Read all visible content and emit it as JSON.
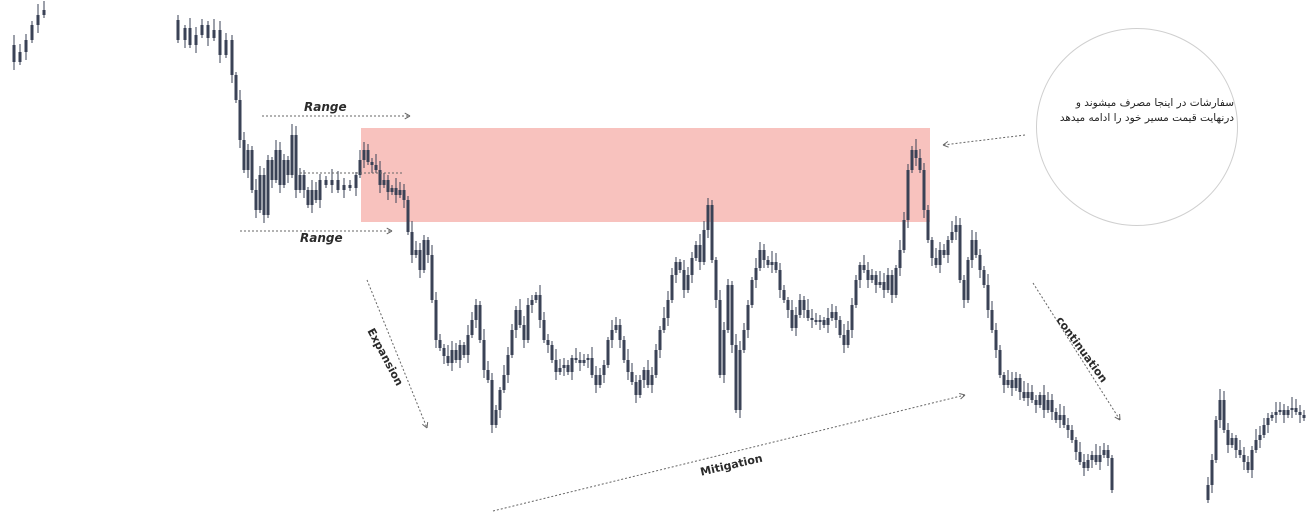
{
  "annotations": {
    "range_top": "Range",
    "range_bottom": "Range",
    "expansion": "Expansion",
    "mitigation": "Mitigation",
    "continuation": "continuation",
    "note": "سفارشات در اینجا مصرف میشوند و درنهایت قیمت مسیر خود را ادامه میدهد"
  },
  "colors": {
    "candle": "#3a4256",
    "zone_fill": "#f7b7b3",
    "arrow": "#666666",
    "circle_border": "#cfcfcf"
  },
  "chart_data": {
    "type": "candlestick",
    "title": "",
    "xlabel": "",
    "ylabel": "",
    "grid": false,
    "ylim": [
      0,
      513
    ],
    "zone": {
      "label": "",
      "y_top": 128,
      "y_bottom": 222,
      "x_start": 361,
      "x_end": 930
    },
    "path": [
      [
        8,
        45
      ],
      [
        14,
        62
      ],
      [
        20,
        52
      ],
      [
        26,
        40
      ],
      [
        32,
        25
      ],
      [
        38,
        15
      ],
      [
        44,
        10
      ],
      [
        172,
        20
      ],
      [
        178,
        40
      ],
      [
        185,
        28
      ],
      [
        190,
        45
      ],
      [
        196,
        35
      ],
      [
        202,
        25
      ],
      [
        208,
        38
      ],
      [
        214,
        30
      ],
      [
        220,
        55
      ],
      [
        226,
        40
      ],
      [
        232,
        75
      ],
      [
        236,
        100
      ],
      [
        240,
        140
      ],
      [
        244,
        170
      ],
      [
        248,
        150
      ],
      [
        252,
        190
      ],
      [
        256,
        210
      ],
      [
        260,
        175
      ],
      [
        264,
        215
      ],
      [
        268,
        160
      ],
      [
        272,
        180
      ],
      [
        276,
        150
      ],
      [
        280,
        185
      ],
      [
        284,
        160
      ],
      [
        288,
        175
      ],
      [
        292,
        135
      ],
      [
        296,
        190
      ],
      [
        300,
        175
      ],
      [
        304,
        190
      ],
      [
        308,
        205
      ],
      [
        312,
        190
      ],
      [
        316,
        200
      ],
      [
        320,
        180
      ],
      [
        326,
        185
      ],
      [
        332,
        180
      ],
      [
        338,
        190
      ],
      [
        344,
        185
      ],
      [
        350,
        188
      ],
      [
        356,
        175
      ],
      [
        360,
        160
      ],
      [
        364,
        150
      ],
      [
        368,
        162
      ],
      [
        372,
        165
      ],
      [
        376,
        170
      ],
      [
        380,
        185
      ],
      [
        384,
        180
      ],
      [
        388,
        192
      ],
      [
        392,
        188
      ],
      [
        396,
        195
      ],
      [
        400,
        190
      ],
      [
        404,
        200
      ],
      [
        408,
        232
      ],
      [
        412,
        255
      ],
      [
        416,
        250
      ],
      [
        420,
        270
      ],
      [
        424,
        240
      ],
      [
        428,
        255
      ],
      [
        432,
        300
      ],
      [
        436,
        340
      ],
      [
        440,
        348
      ],
      [
        444,
        356
      ],
      [
        448,
        363
      ],
      [
        452,
        350
      ],
      [
        456,
        360
      ],
      [
        460,
        345
      ],
      [
        464,
        355
      ],
      [
        468,
        335
      ],
      [
        472,
        320
      ],
      [
        476,
        305
      ],
      [
        480,
        340
      ],
      [
        484,
        370
      ],
      [
        488,
        380
      ],
      [
        492,
        425
      ],
      [
        496,
        410
      ],
      [
        500,
        390
      ],
      [
        504,
        375
      ],
      [
        508,
        355
      ],
      [
        512,
        330
      ],
      [
        516,
        310
      ],
      [
        520,
        325
      ],
      [
        524,
        340
      ],
      [
        528,
        305
      ],
      [
        532,
        300
      ],
      [
        536,
        295
      ],
      [
        540,
        320
      ],
      [
        544,
        340
      ],
      [
        548,
        345
      ],
      [
        552,
        360
      ],
      [
        556,
        372
      ],
      [
        560,
        368
      ],
      [
        564,
        365
      ],
      [
        568,
        372
      ],
      [
        572,
        358
      ],
      [
        576,
        360
      ],
      [
        580,
        363
      ],
      [
        584,
        360
      ],
      [
        588,
        358
      ],
      [
        592,
        375
      ],
      [
        596,
        385
      ],
      [
        600,
        375
      ],
      [
        604,
        365
      ],
      [
        608,
        340
      ],
      [
        612,
        330
      ],
      [
        616,
        325
      ],
      [
        620,
        340
      ],
      [
        624,
        360
      ],
      [
        628,
        372
      ],
      [
        632,
        382
      ],
      [
        636,
        395
      ],
      [
        640,
        380
      ],
      [
        644,
        370
      ],
      [
        648,
        385
      ],
      [
        652,
        375
      ],
      [
        656,
        350
      ],
      [
        660,
        330
      ],
      [
        664,
        318
      ],
      [
        668,
        300
      ],
      [
        672,
        275
      ],
      [
        676,
        262
      ],
      [
        680,
        270
      ],
      [
        684,
        290
      ],
      [
        688,
        275
      ],
      [
        692,
        258
      ],
      [
        696,
        245
      ],
      [
        700,
        262
      ],
      [
        704,
        230
      ],
      [
        708,
        205
      ],
      [
        712,
        260
      ],
      [
        716,
        300
      ],
      [
        720,
        375
      ],
      [
        724,
        330
      ],
      [
        728,
        285
      ],
      [
        732,
        345
      ],
      [
        736,
        410
      ],
      [
        740,
        350
      ],
      [
        744,
        330
      ],
      [
        748,
        305
      ],
      [
        752,
        280
      ],
      [
        756,
        268
      ],
      [
        760,
        250
      ],
      [
        764,
        260
      ],
      [
        768,
        265
      ],
      [
        772,
        262
      ],
      [
        776,
        270
      ],
      [
        780,
        290
      ],
      [
        784,
        300
      ],
      [
        788,
        310
      ],
      [
        792,
        328
      ],
      [
        796,
        315
      ],
      [
        800,
        300
      ],
      [
        804,
        310
      ],
      [
        808,
        318
      ],
      [
        812,
        320
      ],
      [
        816,
        322
      ],
      [
        820,
        320
      ],
      [
        824,
        325
      ],
      [
        828,
        318
      ],
      [
        832,
        312
      ],
      [
        836,
        320
      ],
      [
        840,
        335
      ],
      [
        844,
        345
      ],
      [
        848,
        330
      ],
      [
        852,
        305
      ],
      [
        856,
        280
      ],
      [
        860,
        265
      ],
      [
        864,
        270
      ],
      [
        868,
        280
      ],
      [
        872,
        275
      ],
      [
        876,
        285
      ],
      [
        880,
        282
      ],
      [
        884,
        290
      ],
      [
        888,
        275
      ],
      [
        892,
        295
      ],
      [
        896,
        268
      ],
      [
        900,
        250
      ],
      [
        904,
        220
      ],
      [
        908,
        170
      ],
      [
        912,
        150
      ],
      [
        916,
        158
      ],
      [
        920,
        170
      ],
      [
        924,
        210
      ],
      [
        928,
        240
      ],
      [
        932,
        258
      ],
      [
        936,
        265
      ],
      [
        940,
        250
      ],
      [
        944,
        255
      ],
      [
        948,
        240
      ],
      [
        952,
        232
      ],
      [
        956,
        225
      ],
      [
        960,
        280
      ],
      [
        964,
        300
      ],
      [
        968,
        260
      ],
      [
        972,
        240
      ],
      [
        976,
        255
      ],
      [
        980,
        270
      ],
      [
        984,
        285
      ],
      [
        988,
        310
      ],
      [
        992,
        330
      ],
      [
        996,
        350
      ],
      [
        1000,
        375
      ],
      [
        1004,
        385
      ],
      [
        1008,
        380
      ],
      [
        1012,
        388
      ],
      [
        1016,
        378
      ],
      [
        1020,
        392
      ],
      [
        1024,
        398
      ],
      [
        1028,
        392
      ],
      [
        1032,
        400
      ],
      [
        1036,
        405
      ],
      [
        1040,
        395
      ],
      [
        1044,
        410
      ],
      [
        1048,
        400
      ],
      [
        1052,
        412
      ],
      [
        1056,
        420
      ],
      [
        1060,
        415
      ],
      [
        1064,
        425
      ],
      [
        1068,
        430
      ],
      [
        1072,
        440
      ],
      [
        1076,
        452
      ],
      [
        1080,
        462
      ],
      [
        1084,
        468
      ],
      [
        1088,
        460
      ],
      [
        1092,
        455
      ],
      [
        1096,
        462
      ],
      [
        1100,
        455
      ],
      [
        1104,
        450
      ],
      [
        1108,
        458
      ],
      [
        1112,
        490
      ],
      [
        1204,
        500
      ],
      [
        1208,
        485
      ],
      [
        1212,
        460
      ],
      [
        1216,
        420
      ],
      [
        1220,
        400
      ],
      [
        1224,
        430
      ],
      [
        1228,
        445
      ],
      [
        1232,
        438
      ],
      [
        1236,
        450
      ],
      [
        1240,
        455
      ],
      [
        1244,
        462
      ],
      [
        1248,
        470
      ],
      [
        1252,
        450
      ],
      [
        1256,
        440
      ],
      [
        1260,
        435
      ],
      [
        1264,
        425
      ],
      [
        1268,
        418
      ],
      [
        1272,
        415
      ],
      [
        1276,
        412
      ],
      [
        1280,
        410
      ],
      [
        1284,
        415
      ],
      [
        1288,
        410
      ],
      [
        1292,
        408
      ],
      [
        1296,
        412
      ],
      [
        1300,
        415
      ],
      [
        1304,
        418
      ]
    ]
  }
}
